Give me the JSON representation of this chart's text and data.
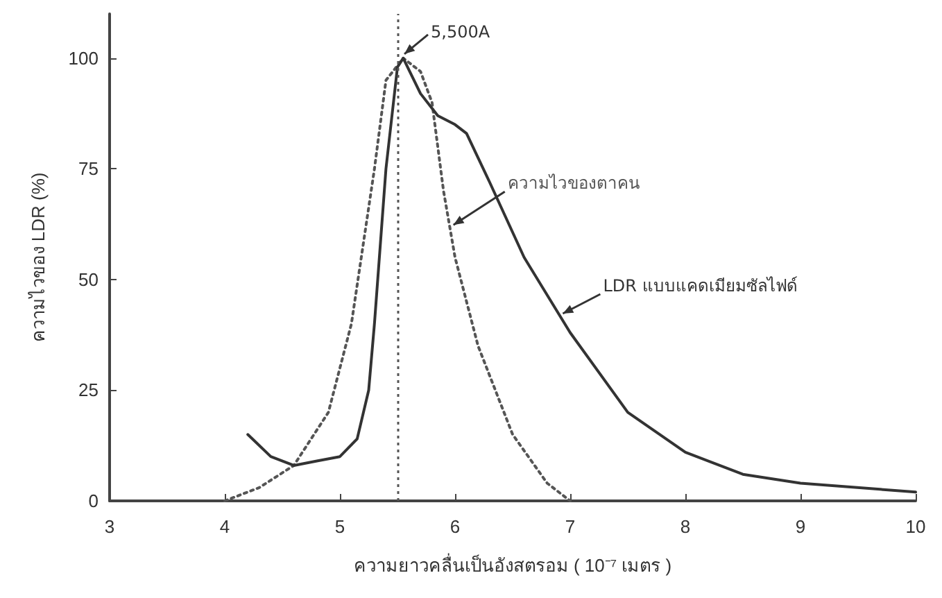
{
  "chart_data": {
    "type": "line",
    "xlabel": "ความยาวคลื่นเป็นอังสตรอม ( 10⁻⁷ เมตร )",
    "ylabel": "ความไวของ LDR (%)",
    "xlim": [
      3,
      10
    ],
    "xticks": [
      3,
      4,
      5,
      6,
      7,
      8,
      9,
      10
    ],
    "ylim": [
      0,
      110
    ],
    "yticks": [
      0,
      25,
      50,
      75,
      100
    ],
    "grid": false,
    "legend": false,
    "marker": "none",
    "series": [
      {
        "name": "ความไวของตาคน",
        "color": "#555555",
        "line_style": "dotted",
        "x": [
          4.0,
          4.3,
          4.6,
          4.9,
          5.1,
          5.3,
          5.4,
          5.55,
          5.7,
          5.8,
          5.9,
          6.0,
          6.2,
          6.5,
          6.8,
          7.0
        ],
        "values": [
          0,
          3,
          8,
          20,
          40,
          75,
          95,
          100,
          97,
          90,
          70,
          55,
          35,
          15,
          4,
          0
        ]
      },
      {
        "name": "LDR แบบแคดเมียมซัลไฟด์",
        "color": "#333333",
        "line_style": "solid",
        "x": [
          4.2,
          4.4,
          4.6,
          4.8,
          5.0,
          5.15,
          5.25,
          5.3,
          5.4,
          5.5,
          5.55,
          5.7,
          5.85,
          6.0,
          6.1,
          6.3,
          6.6,
          7.0,
          7.5,
          8.0,
          8.5,
          9.0,
          10.0
        ],
        "values": [
          15,
          10,
          8,
          9,
          10,
          14,
          25,
          40,
          75,
          98,
          100,
          92,
          87,
          85,
          83,
          72,
          55,
          38,
          20,
          11,
          6,
          4,
          2
        ]
      }
    ],
    "ref_lines": [
      {
        "axis": "x",
        "value": 5.5,
        "color": "#555555",
        "line_style": "dotted"
      }
    ],
    "annotations": [
      {
        "text": "5,500A",
        "x": 5.5,
        "y": 100
      }
    ]
  }
}
